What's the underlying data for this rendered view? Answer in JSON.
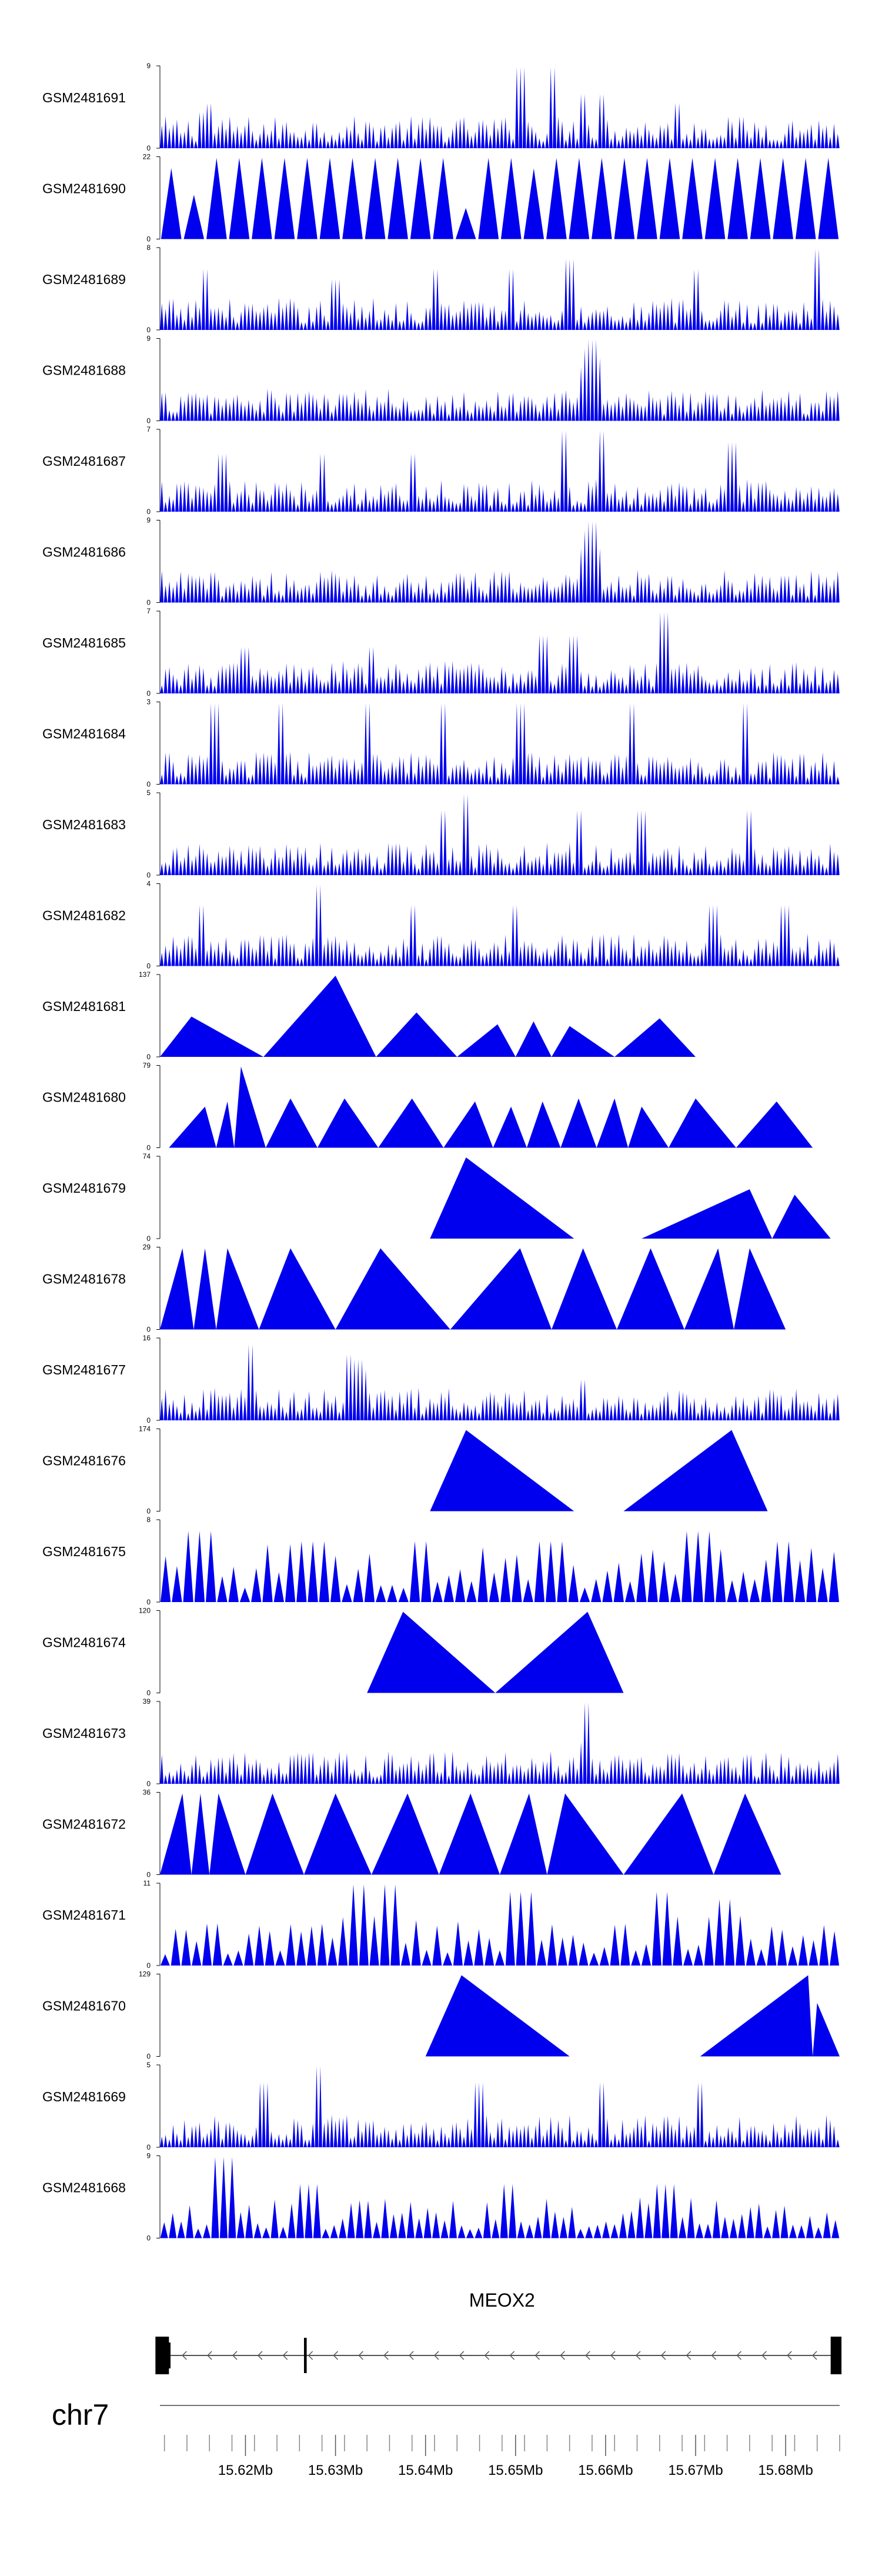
{
  "chart_data": {
    "type": "area",
    "title": "",
    "xlabel": "",
    "chromosome": "chr7",
    "gene": {
      "name": "MEOX2",
      "strand": "-",
      "start_mb": 15.6115,
      "end_mb": 15.6855,
      "exons_mb": [
        [
          15.61,
          15.6115
        ],
        [
          15.6265,
          15.6268
        ],
        [
          15.685,
          15.6862
        ]
      ]
    },
    "xlim_mb": [
      15.6105,
      15.686
    ],
    "axis_ticks": [
      "15.62Mb",
      "15.63Mb",
      "15.64Mb",
      "15.65Mb",
      "15.66Mb",
      "15.67Mb",
      "15.68Mb"
    ],
    "axis_tick_values_mb": [
      15.62,
      15.63,
      15.64,
      15.65,
      15.66,
      15.67,
      15.68
    ],
    "tracks": [
      {
        "label": "GSM2481691",
        "ymax": 9,
        "style": "dense",
        "peaks": [
          [
            15.616,
            5
          ],
          [
            15.615,
            4
          ],
          [
            15.6505,
            9
          ],
          [
            15.654,
            9
          ],
          [
            15.6575,
            6
          ],
          [
            15.6595,
            6
          ],
          [
            15.668,
            5
          ]
        ]
      },
      {
        "label": "GSM2481690",
        "ymax": 22,
        "style": "spikes",
        "peaks": [
          [
            15.6125,
            12
          ],
          [
            15.6175,
            22
          ],
          [
            15.6185,
            22
          ],
          [
            15.6245,
            22
          ],
          [
            15.6255,
            22
          ],
          [
            15.63,
            22
          ],
          [
            15.635,
            22
          ],
          [
            15.6405,
            22
          ],
          [
            15.6475,
            22
          ],
          [
            15.656,
            22
          ],
          [
            15.6615,
            22
          ],
          [
            15.666,
            22
          ],
          [
            15.6695,
            22
          ],
          [
            15.676,
            22
          ],
          [
            15.681,
            22
          ]
        ],
        "base": 22,
        "spike_count": 30
      },
      {
        "label": "GSM2481689",
        "ymax": 8,
        "style": "dense",
        "peaks": [
          [
            15.6155,
            6
          ],
          [
            15.63,
            5
          ],
          [
            15.641,
            6
          ],
          [
            15.6495,
            6
          ],
          [
            15.656,
            7
          ],
          [
            15.67,
            6
          ],
          [
            15.6835,
            8
          ]
        ]
      },
      {
        "label": "GSM2481688",
        "ymax": 9,
        "style": "dense",
        "peaks": [
          [
            15.6585,
            9
          ],
          [
            15.658,
            8
          ],
          [
            15.6575,
            6
          ],
          [
            15.659,
            7
          ],
          [
            15.631,
            3
          ],
          [
            15.672,
            3
          ]
        ]
      },
      {
        "label": "GSM2481687",
        "ymax": 7,
        "style": "dense",
        "peaks": [
          [
            15.6175,
            5
          ],
          [
            15.6285,
            5
          ],
          [
            15.6385,
            5
          ],
          [
            15.6555,
            7
          ],
          [
            15.6595,
            7
          ],
          [
            15.674,
            6
          ]
        ]
      },
      {
        "label": "GSM2481686",
        "ymax": 9,
        "style": "dense",
        "peaks": [
          [
            15.6585,
            9
          ],
          [
            15.658,
            8
          ],
          [
            15.6575,
            6
          ],
          [
            15.659,
            6
          ],
          [
            15.644,
            3
          ],
          [
            15.68,
            3
          ]
        ]
      },
      {
        "label": "GSM2481685",
        "ymax": 7,
        "style": "dense",
        "peaks": [
          [
            15.653,
            5
          ],
          [
            15.6565,
            5
          ],
          [
            15.6665,
            7
          ],
          [
            15.62,
            4
          ],
          [
            15.634,
            4
          ]
        ]
      },
      {
        "label": "GSM2481684",
        "ymax": 3,
        "style": "dense",
        "peaks": [
          [
            15.6165,
            3
          ],
          [
            15.624,
            3
          ],
          [
            15.6335,
            3
          ],
          [
            15.642,
            3
          ],
          [
            15.6505,
            3
          ],
          [
            15.663,
            3
          ],
          [
            15.6755,
            3
          ]
        ]
      },
      {
        "label": "GSM2481683",
        "ymax": 5,
        "style": "dense",
        "peaks": [
          [
            15.642,
            4
          ],
          [
            15.6445,
            5
          ],
          [
            15.657,
            4
          ],
          [
            15.664,
            4
          ],
          [
            15.676,
            4
          ]
        ]
      },
      {
        "label": "GSM2481682",
        "ymax": 4,
        "style": "dense",
        "peaks": [
          [
            15.628,
            4
          ],
          [
            15.615,
            3
          ],
          [
            15.6385,
            3
          ],
          [
            15.65,
            3
          ],
          [
            15.672,
            3
          ],
          [
            15.68,
            3
          ]
        ]
      },
      {
        "label": "GSM2481681",
        "ymax": 137,
        "style": "triangles",
        "peaks": [
          [
            15.614,
            68
          ],
          [
            15.63,
            137
          ],
          [
            15.639,
            75
          ],
          [
            15.648,
            55
          ],
          [
            15.652,
            60
          ],
          [
            15.656,
            52
          ],
          [
            15.666,
            65
          ]
        ]
      },
      {
        "label": "GSM2481680",
        "ymax": 79,
        "style": "triangles",
        "peaks": [
          [
            15.6155,
            40
          ],
          [
            15.618,
            45
          ],
          [
            15.6195,
            79
          ],
          [
            15.625,
            48
          ],
          [
            15.631,
            48
          ],
          [
            15.6385,
            48
          ],
          [
            15.6455,
            45
          ],
          [
            15.6495,
            40
          ],
          [
            15.653,
            45
          ],
          [
            15.657,
            48
          ],
          [
            15.661,
            48
          ],
          [
            15.664,
            40
          ],
          [
            15.67,
            48
          ],
          [
            15.679,
            45
          ]
        ]
      },
      {
        "label": "GSM2481679",
        "ymax": 74,
        "style": "triangles",
        "peaks": [
          [
            15.6445,
            74
          ],
          [
            15.676,
            45
          ],
          [
            15.681,
            40
          ]
        ]
      },
      {
        "label": "GSM2481678",
        "ymax": 29,
        "style": "triangles",
        "peaks": [
          [
            15.613,
            29
          ],
          [
            15.6155,
            29
          ],
          [
            15.618,
            29
          ],
          [
            15.625,
            29
          ],
          [
            15.635,
            29
          ],
          [
            15.6505,
            29
          ],
          [
            15.6575,
            29
          ],
          [
            15.665,
            29
          ],
          [
            15.6725,
            29
          ],
          [
            15.676,
            29
          ]
        ]
      },
      {
        "label": "GSM2481677",
        "ymax": 16,
        "style": "dense",
        "peaks": [
          [
            15.6205,
            15
          ],
          [
            15.6315,
            13
          ],
          [
            15.6325,
            12
          ],
          [
            15.633,
            10
          ],
          [
            15.6575,
            8
          ],
          [
            15.617,
            5
          ]
        ]
      },
      {
        "label": "GSM2481676",
        "ymax": 174,
        "style": "triangles",
        "peaks": [
          [
            15.6445,
            174
          ],
          [
            15.674,
            174
          ]
        ]
      },
      {
        "label": "GSM2481675",
        "ymax": 8,
        "style": "spikes",
        "peaks": [
          [
            15.615,
            7
          ],
          [
            15.6275,
            6
          ],
          [
            15.6395,
            6
          ],
          [
            15.654,
            6
          ],
          [
            15.6705,
            7
          ],
          [
            15.68,
            6
          ]
        ],
        "base": 5,
        "spike_count": 60
      },
      {
        "label": "GSM2481674",
        "ymax": 120,
        "style": "triangles",
        "peaks": [
          [
            15.6375,
            120
          ],
          [
            15.658,
            120
          ]
        ]
      },
      {
        "label": "GSM2481673",
        "ymax": 39,
        "style": "dense",
        "peaks": [
          [
            15.658,
            39
          ],
          [
            15.6575,
            20
          ],
          [
            15.6305,
            12
          ],
          [
            15.6625,
            8
          ]
        ]
      },
      {
        "label": "GSM2481672",
        "ymax": 36,
        "style": "triangles",
        "peaks": [
          [
            15.613,
            36
          ],
          [
            15.615,
            36
          ],
          [
            15.617,
            36
          ],
          [
            15.623,
            36
          ],
          [
            15.63,
            36
          ],
          [
            15.638,
            36
          ],
          [
            15.645,
            36
          ],
          [
            15.6515,
            36
          ],
          [
            15.6555,
            36
          ],
          [
            15.6685,
            36
          ],
          [
            15.6755,
            36
          ]
        ]
      },
      {
        "label": "GSM2481671",
        "ymax": 11,
        "style": "spikes",
        "peaks": [
          [
            15.6325,
            11
          ],
          [
            15.636,
            11
          ],
          [
            15.6505,
            10
          ],
          [
            15.666,
            10
          ],
          [
            15.6735,
            9
          ]
        ],
        "base": 6,
        "spike_count": 65
      },
      {
        "label": "GSM2481670",
        "ymax": 129,
        "style": "triangles",
        "peaks": [
          [
            15.644,
            129
          ],
          [
            15.6825,
            129
          ],
          [
            15.6835,
            85
          ]
        ]
      },
      {
        "label": "GSM2481669",
        "ymax": 5,
        "style": "dense",
        "peaks": [
          [
            15.622,
            4
          ],
          [
            15.628,
            5
          ],
          [
            15.646,
            4
          ],
          [
            15.6595,
            4
          ],
          [
            15.6705,
            4
          ]
        ]
      },
      {
        "label": "GSM2481668",
        "ymax": 9,
        "style": "spikes",
        "peaks": [
          [
            15.6175,
            9
          ],
          [
            15.627,
            6
          ],
          [
            15.649,
            6
          ],
          [
            15.6665,
            6
          ]
        ],
        "base": 4,
        "spike_count": 80
      }
    ]
  }
}
